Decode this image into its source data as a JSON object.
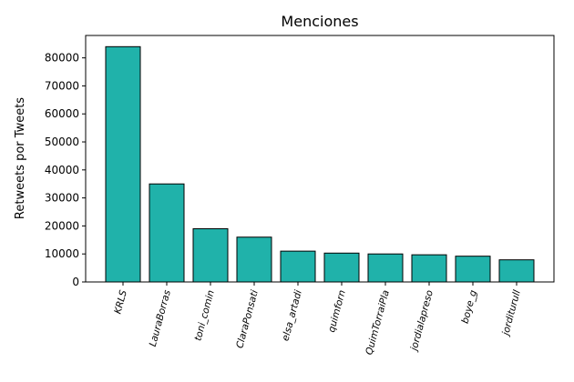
{
  "chart_data": {
    "type": "bar",
    "title": "Menciones",
    "ylabel": "Retweets por Tweets",
    "xlabel": "",
    "categories": [
      "KRLS",
      "LauraBorras",
      "toni_comin",
      "ClaraPonsati",
      "elsa_artadi",
      "quimforn",
      "QuimTorraiPla",
      "jordialapreso",
      "boye_g",
      "jorditurull"
    ],
    "values": [
      84000,
      35000,
      19000,
      16000,
      11000,
      10300,
      10000,
      9700,
      9200,
      7900
    ],
    "ylim": [
      0,
      88000
    ],
    "yticks": [
      0,
      10000,
      20000,
      30000,
      40000,
      50000,
      60000,
      70000,
      80000
    ],
    "grid": false,
    "colors": {
      "bar": "#20b2aa",
      "edge": "#000000"
    }
  }
}
